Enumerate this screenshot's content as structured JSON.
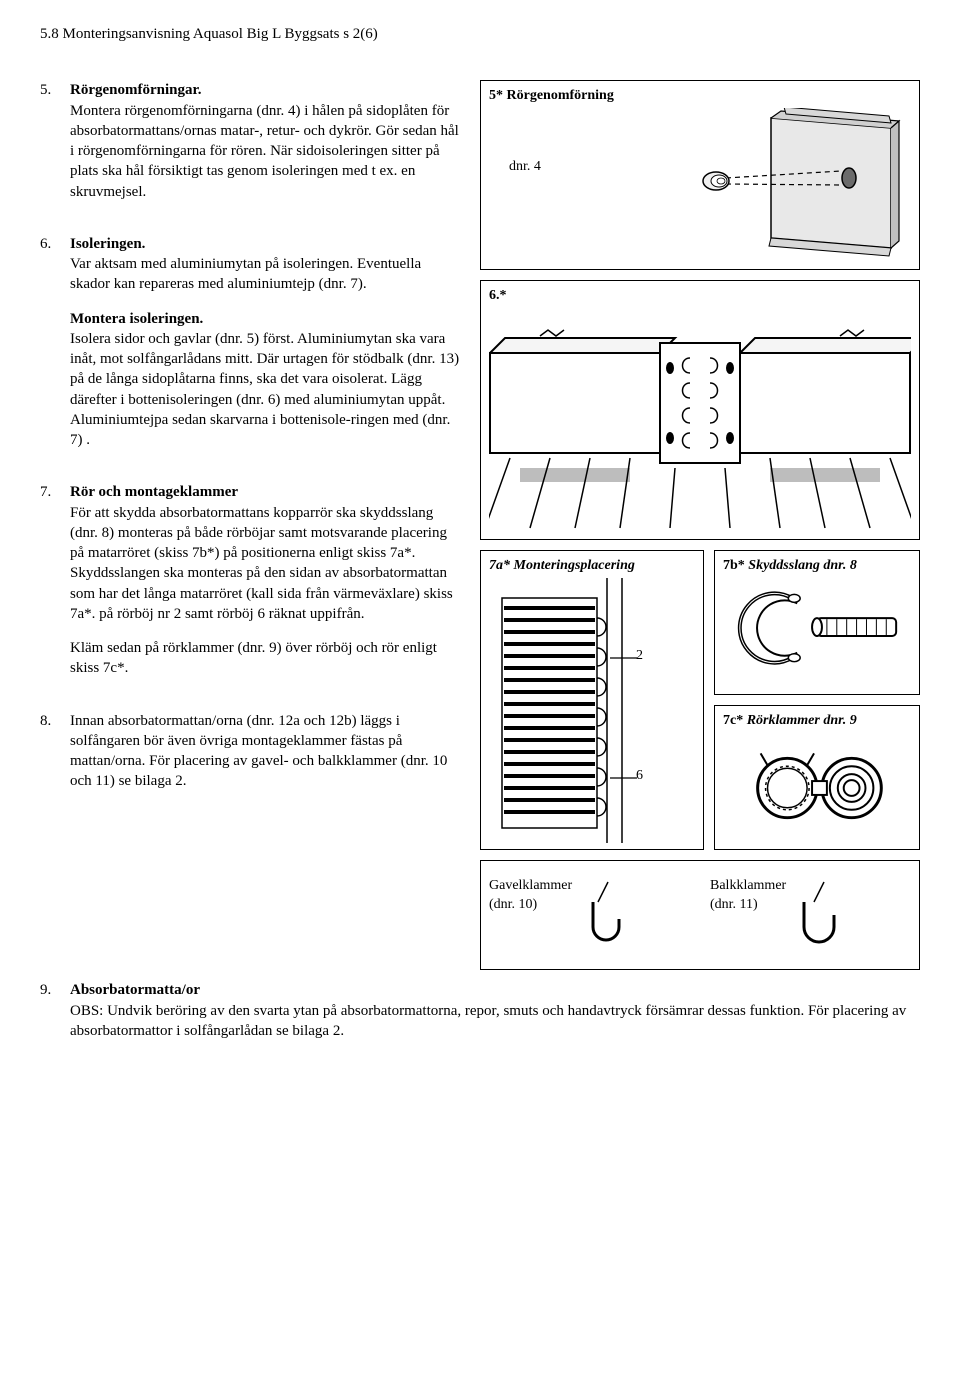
{
  "page_header": "5.8 Monteringsanvisning Aquasol Big L Byggsats s 2(6)",
  "sections": [
    {
      "num": "5.",
      "title": "Rörgenomförningar.",
      "text": "Montera rörgenomförningarna (dnr. 4) i hålen på sidoplåten för absorbatormattans/ornas matar-, retur- och dykrör. Gör sedan hål i rörgenomförningarna för rören. När sidoisoleringen sitter på plats ska hål försiktigt tas genom isoleringen med t ex. en skruvmejsel."
    },
    {
      "num": "6.",
      "title": "Isoleringen.",
      "text": "Var aktsam med aluminiumytan på isoleringen. Eventuella skador kan repareras med aluminiumtejp (dnr. 7).",
      "sub_title": "Montera isoleringen.",
      "sub_text": "Isolera sidor och gavlar (dnr. 5) först. Aluminiumytan ska vara inåt, mot solfångarlådans mitt. Där urtagen för stödbalk (dnr. 13) på de långa sidoplåtarna finns, ska det vara oisolerat. Lägg därefter i bottenisoleringen (dnr. 6) med aluminiumytan uppåt. Aluminiumtejpa sedan skarvarna i bottenisole-ringen med (dnr. 7) ."
    },
    {
      "num": "7.",
      "title": "Rör och montageklammer",
      "text": "För att skydda absorbatormattans kopparrör ska skyddsslang (dnr. 8) monteras på både rörböjar samt motsvarande placering på matarröret (skiss 7b*) på positionerna enligt skiss 7a*. Skyddsslangen ska monteras på den sidan av absorbatormattan som har det långa matarröret (kall sida från värmeväxlare) skiss 7a*. på rörböj nr 2 samt rörböj 6 räknat uppifrån.",
      "text2": "Kläm sedan på rörklammer (dnr. 9) över rörböj och rör enligt skiss 7c*."
    },
    {
      "num": "8.",
      "text": "Innan absorbatormattan/orna (dnr. 12a och 12b) läggs i solfångaren bör även övriga montageklammer fästas på mattan/orna. För placering av gavel- och balkklammer (dnr. 10 och 11) se bilaga 2."
    },
    {
      "num": "9.",
      "title": "Absorbatormatta/or",
      "text": "OBS: Undvik beröring av den svarta ytan på absorbatormattorna, repor, smuts och handavtryck försämrar dessas funktion. För placering av absorbatormattor i solfångarlådan se bilaga 2."
    }
  ],
  "figures": {
    "f5": {
      "title": "5* Rörgenomförning",
      "label": "dnr. 4"
    },
    "f6": {
      "title": "6.*"
    },
    "f7a": {
      "title": "7a* Monteringsplacering",
      "mark2": "2",
      "mark6": "6"
    },
    "f7b": {
      "title": "7b* Skyddsslang dnr. 8"
    },
    "f7c": {
      "title": "7c* Rörklammer dnr. 9"
    },
    "f8": {
      "gavel": "Gavelklammer\n(dnr. 10)",
      "balk": "Balkklammer\n(dnr. 11)"
    }
  }
}
